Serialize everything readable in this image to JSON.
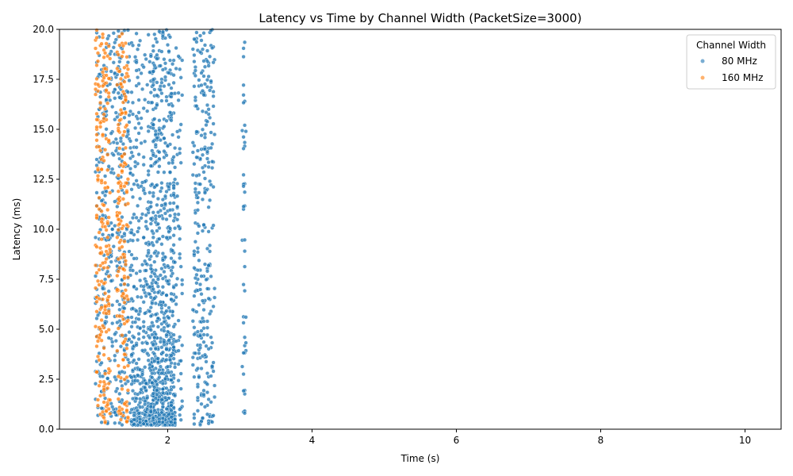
{
  "chart_data": {
    "type": "scatter",
    "title": "Latency vs Time by Channel Width (PacketSize=3000)",
    "xlabel": "Time (s)",
    "ylabel": "Latency (ms)",
    "xlim": [
      0.5,
      10.5
    ],
    "ylim": [
      0,
      20
    ],
    "xticks": [
      2,
      4,
      6,
      8,
      10
    ],
    "yticks": [
      0.0,
      2.5,
      5.0,
      7.5,
      10.0,
      12.5,
      15.0,
      17.5,
      20.0
    ],
    "grid": false,
    "legend": {
      "title": "Channel Width",
      "placement": "top-right"
    },
    "series": [
      {
        "name": "80 MHz",
        "color": "#1f77b4",
        "clusters": [
          {
            "x_range": [
              1.0,
              1.5
            ],
            "count": 420,
            "latency_profile": "uniform"
          },
          {
            "x_range": [
              1.5,
              1.75
            ],
            "count": 380,
            "latency_profile": "low-heavy"
          },
          {
            "x_range": [
              1.75,
              2.1
            ],
            "count": 900,
            "latency_profile": "low-heavy"
          },
          {
            "x_range": [
              2.1,
              2.2
            ],
            "count": 60,
            "latency_profile": "uniform"
          },
          {
            "x_range": [
              2.35,
              2.65
            ],
            "count": 300,
            "latency_profile": "uniform"
          },
          {
            "x_range": [
              3.04,
              3.08
            ],
            "count": 45,
            "latency_profile": "uniform"
          }
        ]
      },
      {
        "name": "160 MHz",
        "color": "#ff7f0e",
        "clusters": [
          {
            "x_range": [
              1.0,
              1.2
            ],
            "count": 220,
            "latency_profile": "uniform"
          },
          {
            "x_range": [
              1.3,
              1.45
            ],
            "count": 180,
            "latency_profile": "uniform"
          }
        ]
      }
    ]
  }
}
